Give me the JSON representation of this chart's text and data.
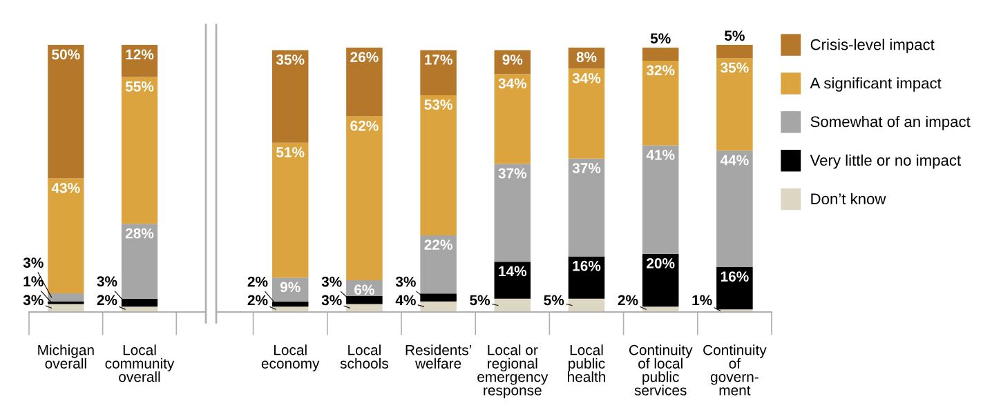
{
  "chart_data": [
    {
      "type": "bar",
      "stacked": true,
      "legend": false,
      "grid": false,
      "tick_labels": "x",
      "categories": [
        "Michigan\noverall",
        "Local\ncommunity\noverall"
      ],
      "series": [
        {
          "color": "#dcd6c3",
          "values": [
            3,
            2
          ],
          "value_labels": [
            "3%",
            "2%"
          ]
        },
        {
          "color": "#000000",
          "values": [
            1,
            3
          ],
          "value_labels": [
            "1%",
            "3%"
          ]
        },
        {
          "color": "#a6a6a6",
          "values": [
            3,
            28
          ],
          "value_labels": [
            "3%",
            "28%"
          ]
        },
        {
          "color": "#dba43e",
          "values": [
            43,
            55
          ],
          "value_labels": [
            "43%",
            "55%"
          ]
        },
        {
          "color": "#b5782a",
          "values": [
            50,
            12
          ],
          "value_labels": [
            "50%",
            "12%"
          ]
        }
      ]
    },
    {
      "type": "bar",
      "stacked": true,
      "legend": "right",
      "grid": false,
      "tick_labels": "x",
      "categories": [
        "Local\neconomy",
        "Local\nschools",
        "Residents’\nwelfare",
        "Local or\nregional\nemergency\nresponse",
        "Local\npublic\nhealth",
        "Continuity\nof local\npublic\nservices",
        "Continuity\nof\ngovern-\nment"
      ],
      "series": [
        {
          "name": "Don’t know",
          "color": "#dcd6c3",
          "values": [
            2,
            3,
            4,
            5,
            5,
            2,
            1
          ],
          "value_labels": [
            "2%",
            "3%",
            "4%",
            "5%",
            "5%",
            "2%",
            "1%"
          ]
        },
        {
          "name": "Very little or no impact",
          "color": "#000000",
          "values": [
            2,
            3,
            3,
            14,
            16,
            20,
            16
          ],
          "value_labels": [
            "2%",
            "3%",
            "3%",
            "14%",
            "16%",
            "20%",
            "16%"
          ]
        },
        {
          "name": "Somewhat of an impact",
          "color": "#a6a6a6",
          "values": [
            9,
            6,
            22,
            37,
            37,
            41,
            44
          ],
          "value_labels": [
            "9%",
            "6%",
            "22%",
            "37%",
            "37%",
            "41%",
            "44%"
          ]
        },
        {
          "name": "A significant impact",
          "color": "#dba43e",
          "values": [
            51,
            62,
            53,
            34,
            34,
            32,
            35
          ],
          "value_labels": [
            "51%",
            "62%",
            "53%",
            "34%",
            "34%",
            "32%",
            "35%"
          ]
        },
        {
          "name": "Crisis-level impact",
          "color": "#b5782a",
          "values": [
            35,
            26,
            17,
            9,
            8,
            5,
            5
          ],
          "value_labels": [
            "35%",
            "26%",
            "17%",
            "9%",
            "8%",
            "5%",
            "5%"
          ]
        }
      ]
    }
  ]
}
